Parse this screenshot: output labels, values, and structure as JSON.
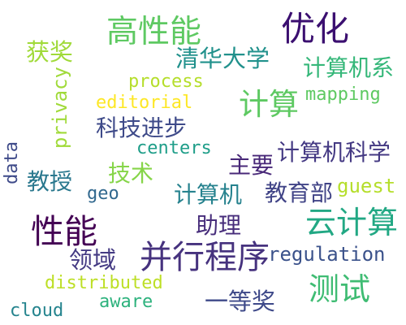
{
  "words": [
    {
      "key": "gaoxingneng",
      "text": "高性能",
      "color": "#5ec962"
    },
    {
      "key": "youhua",
      "text": "优化",
      "color": "#3b0f70"
    },
    {
      "key": "huojiang",
      "text": "获奖",
      "color": "#a0da39"
    },
    {
      "key": "qinghuadaxue",
      "text": "清华大学",
      "color": "#21918c"
    },
    {
      "key": "jisuanjixi",
      "text": "计算机系",
      "color": "#35b779"
    },
    {
      "key": "privacy",
      "text": "privacy",
      "color": "#a0da39"
    },
    {
      "key": "process",
      "text": "process",
      "color": "#b5de2b"
    },
    {
      "key": "editorial",
      "text": "editorial",
      "color": "#fde725"
    },
    {
      "key": "jisuan",
      "text": "计算",
      "color": "#5ec962"
    },
    {
      "key": "mapping",
      "text": "mapping",
      "color": "#5ec962"
    },
    {
      "key": "kejijinbu",
      "text": "科技进步",
      "color": "#3e4a89"
    },
    {
      "key": "centers",
      "text": "centers",
      "color": "#1f9e89"
    },
    {
      "key": "jisuanjikexue",
      "text": "计算机科学",
      "color": "#443983"
    },
    {
      "key": "data",
      "text": "data",
      "color": "#3e4a89"
    },
    {
      "key": "zhuyao",
      "text": "主要",
      "color": "#482878"
    },
    {
      "key": "jiaoshou",
      "text": "教授",
      "color": "#2a788e"
    },
    {
      "key": "jishu",
      "text": "技术",
      "color": "#86d549"
    },
    {
      "key": "geo",
      "text": "geo",
      "color": "#31688e"
    },
    {
      "key": "jisuanji",
      "text": "计算机",
      "color": "#26828e"
    },
    {
      "key": "jiaoyubu",
      "text": "教育部",
      "color": "#414487"
    },
    {
      "key": "guest",
      "text": "guest",
      "color": "#b5de2b"
    },
    {
      "key": "xingneng",
      "text": "性能",
      "color": "#440154"
    },
    {
      "key": "zhuli",
      "text": "助理",
      "color": "#472d7b"
    },
    {
      "key": "yunjisuan",
      "text": "云计算",
      "color": "#22a884"
    },
    {
      "key": "bingxingchengxu",
      "text": "并行程序",
      "color": "#46327e"
    },
    {
      "key": "regulation",
      "text": "regulation",
      "color": "#3b528b"
    },
    {
      "key": "lingyu",
      "text": "领域",
      "color": "#443a83"
    },
    {
      "key": "distributed",
      "text": "distributed",
      "color": "#bddf26"
    },
    {
      "key": "ceshi",
      "text": "测试",
      "color": "#3fbc73"
    },
    {
      "key": "aware",
      "text": "aware",
      "color": "#2db27d"
    },
    {
      "key": "yidengjiang",
      "text": "一等奖",
      "color": "#3e4989"
    },
    {
      "key": "cloud",
      "text": "cloud",
      "color": "#25848e"
    }
  ]
}
